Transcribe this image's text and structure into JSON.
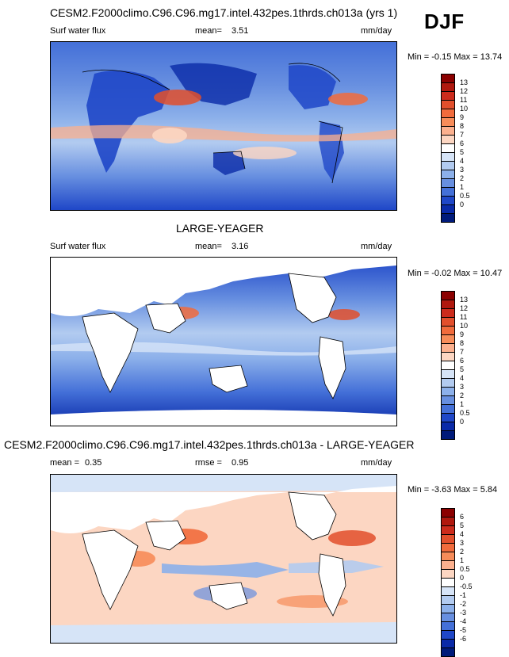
{
  "season": "DJF",
  "panels": [
    {
      "title": "CESM2.F2000climo.C96.C96.mg17.intel.432pes.1thrds.ch013a (yrs 1)",
      "variable": "Surf water flux",
      "stat1_label": "mean=",
      "stat1_value": "3.51",
      "units": "mm/day",
      "range_text": "Min =  -0.15 Max =  13.74",
      "levels": [
        "13",
        "12",
        "11",
        "10",
        "9",
        "8",
        "7",
        "6",
        "5",
        "4",
        "3",
        "2",
        "1",
        "0.5",
        "0"
      ],
      "palette": [
        "#8b0000",
        "#b0180e",
        "#cc2b1c",
        "#e24f2c",
        "#f16b3c",
        "#f78c59",
        "#fbb08e",
        "#fcd6c2",
        "#ffffff",
        "#d6e4f7",
        "#b2cbf0",
        "#8cb0ea",
        "#678fe0",
        "#4470d8",
        "#1f47c8",
        "#0a2aa8",
        "#001a7a"
      ]
    },
    {
      "title": "LARGE-YEAGER",
      "variable": "Surf water flux",
      "stat1_label": "mean=",
      "stat1_value": "3.16",
      "units": "mm/day",
      "range_text": "Min =  -0.02 Max =  10.47",
      "levels": [
        "13",
        "12",
        "11",
        "10",
        "9",
        "8",
        "7",
        "6",
        "5",
        "4",
        "3",
        "2",
        "1",
        "0.5",
        "0"
      ],
      "palette": [
        "#8b0000",
        "#b0180e",
        "#cc2b1c",
        "#e24f2c",
        "#f16b3c",
        "#f78c59",
        "#fbb08e",
        "#fcd6c2",
        "#ffffff",
        "#d6e4f7",
        "#b2cbf0",
        "#8cb0ea",
        "#678fe0",
        "#4470d8",
        "#1f47c8",
        "#0a2aa8",
        "#001a7a"
      ]
    },
    {
      "title": "CESM2.F2000climo.C96.C96.mg17.intel.432pes.1thrds.ch013a - LARGE-YEAGER",
      "stat1_label": "mean =",
      "stat1_value": "0.35",
      "stat2_label": "rmse =",
      "stat2_value": "0.95",
      "units": "mm/day",
      "range_text": "Min =  -3.63 Max =   5.84",
      "levels": [
        "6",
        "5",
        "4",
        "3",
        "2",
        "1",
        "0.5",
        "0",
        "-0.5",
        "-1",
        "-2",
        "-3",
        "-4",
        "-5",
        "-6"
      ],
      "palette": [
        "#8b0000",
        "#b0180e",
        "#cc2b1c",
        "#e24f2c",
        "#f16b3c",
        "#f78c59",
        "#fbb08e",
        "#fcd6c2",
        "#ffffff",
        "#d6e4f7",
        "#b2cbf0",
        "#8cb0ea",
        "#678fe0",
        "#4470d8",
        "#1f47c8",
        "#0a2aa8",
        "#001a7a"
      ]
    }
  ]
}
